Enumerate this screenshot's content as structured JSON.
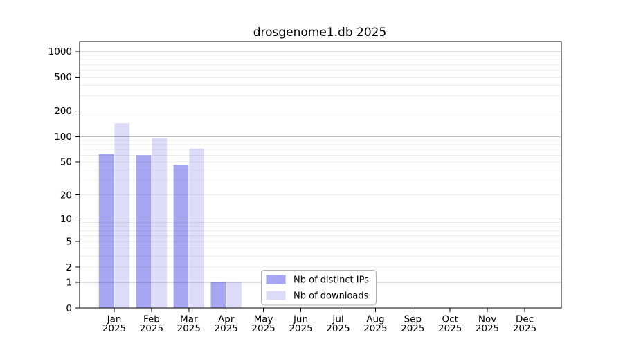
{
  "chart_data": {
    "type": "bar",
    "title": "drosgenome1.db 2025",
    "categories": [
      "Jan",
      "Feb",
      "Mar",
      "Apr",
      "May",
      "Jun",
      "Jul",
      "Aug",
      "Sep",
      "Oct",
      "Nov",
      "Dec"
    ],
    "x_axis": {
      "year_label": "2025"
    },
    "y_axis": {
      "scale": "log1p",
      "ylim": [
        0,
        1300
      ],
      "ticks": [
        {
          "label": "1000",
          "value": 1000
        },
        {
          "label": "500",
          "value": 500
        },
        {
          "label": "200",
          "value": 200
        },
        {
          "label": "100",
          "value": 100
        },
        {
          "label": "50",
          "value": 50
        },
        {
          "label": "20",
          "value": 20
        },
        {
          "label": "10",
          "value": 10
        },
        {
          "label": "5",
          "value": 5
        },
        {
          "label": "2",
          "value": 2
        },
        {
          "label": "1",
          "value": 1
        },
        {
          "label": "0",
          "value": 0
        }
      ],
      "major_grid_values": [
        1,
        10,
        100,
        1000
      ]
    },
    "series": [
      {
        "key": "distinct-ips",
        "name": "Nb of distinct IPs",
        "color": "#a6a6f2",
        "values": [
          62,
          60,
          46,
          1,
          0,
          0,
          0,
          0,
          0,
          0,
          0,
          0
        ]
      },
      {
        "key": "downloads",
        "name": "Nb of downloads",
        "color": "#dcdcf8",
        "values": [
          143,
          95,
          72,
          1,
          0,
          0,
          0,
          0,
          0,
          0,
          0,
          0
        ]
      }
    ],
    "legend": {
      "entries": [
        "Nb of distinct IPs",
        "Nb of downloads"
      ],
      "position": "bottom-center"
    },
    "grid": true
  },
  "colors": {
    "background": "#ffffff",
    "bar_distinct_ips": "#a6a6f2",
    "bar_downloads": "#dcdcf8",
    "grid_major": "rgba(0,0,0,0.26)",
    "grid_minor": "rgba(0,0,0,0.07)",
    "axis": "#000000",
    "legend_border": "#b0b0b0",
    "text": "#000000"
  }
}
